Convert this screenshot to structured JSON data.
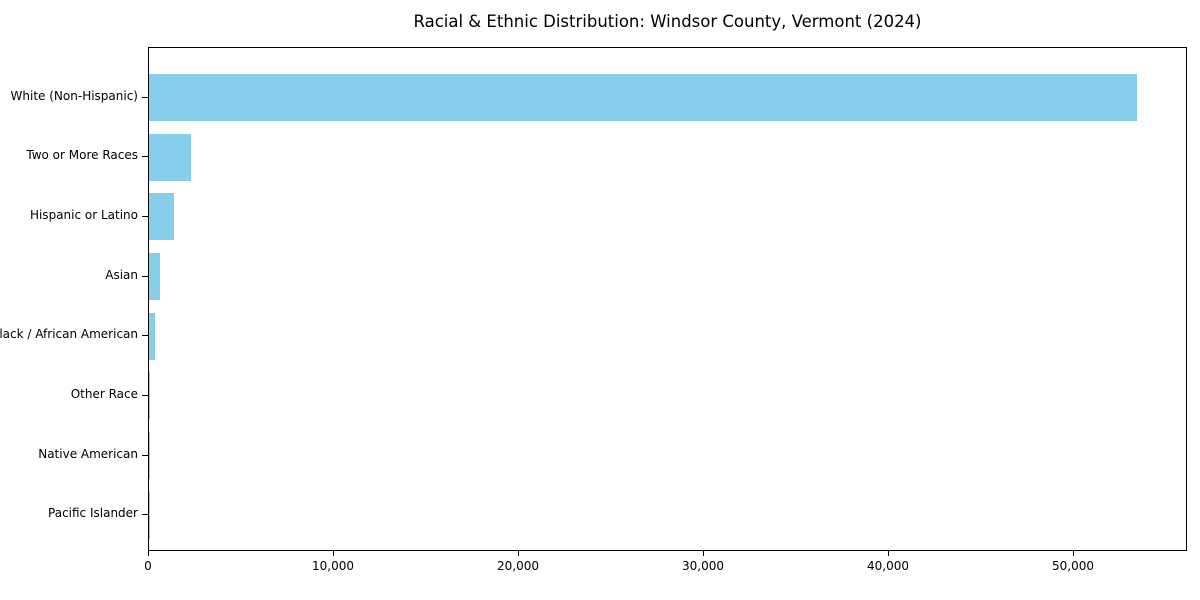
{
  "title": "Racial & Ethnic Distribution: Windsor County, Vermont (2024)",
  "chart_data": {
    "type": "bar",
    "orientation": "horizontal",
    "title": "Racial & Ethnic Distribution: Windsor County, Vermont (2024)",
    "xlabel": "",
    "ylabel": "",
    "categories": [
      "White (Non-Hispanic)",
      "Two or More Races",
      "Hispanic or Latino",
      "Asian",
      "Black / African American",
      "Other Race",
      "Native American",
      "Pacific Islander"
    ],
    "values": [
      53400,
      2270,
      1350,
      610,
      350,
      80,
      40,
      10
    ],
    "bar_color": "#87CEEB",
    "xlim": [
      0,
      56160
    ],
    "x_ticks": [
      0,
      10000,
      20000,
      30000,
      40000,
      50000
    ],
    "x_tick_labels": [
      "0",
      "10,000",
      "20,000",
      "30,000",
      "40,000",
      "50,000"
    ],
    "grid": false,
    "legend": false,
    "background_color": "#ffffff",
    "axis_color": "#000000"
  }
}
